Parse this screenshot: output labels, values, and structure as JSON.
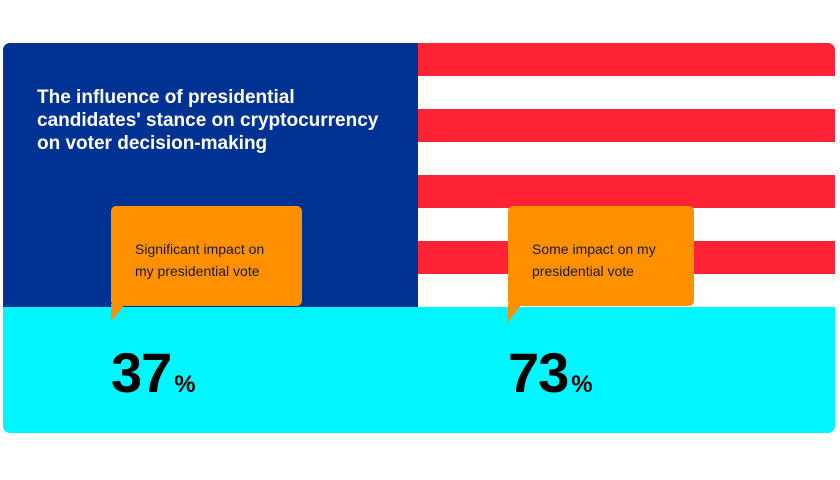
{
  "chart_data": {
    "type": "bar",
    "title": "The influence of presidential candidates' stance on cryptocurrency on voter decision-making",
    "categories": [
      "Significant impact on my presidential vote",
      "Some impact on my presidential vote"
    ],
    "values": [
      37,
      73
    ],
    "unit": "%"
  },
  "colors": {
    "flag_blue": "#003293",
    "flag_red": "#ff2335",
    "bubble_orange": "#ff9100",
    "base_cyan": "#00f6ff"
  }
}
